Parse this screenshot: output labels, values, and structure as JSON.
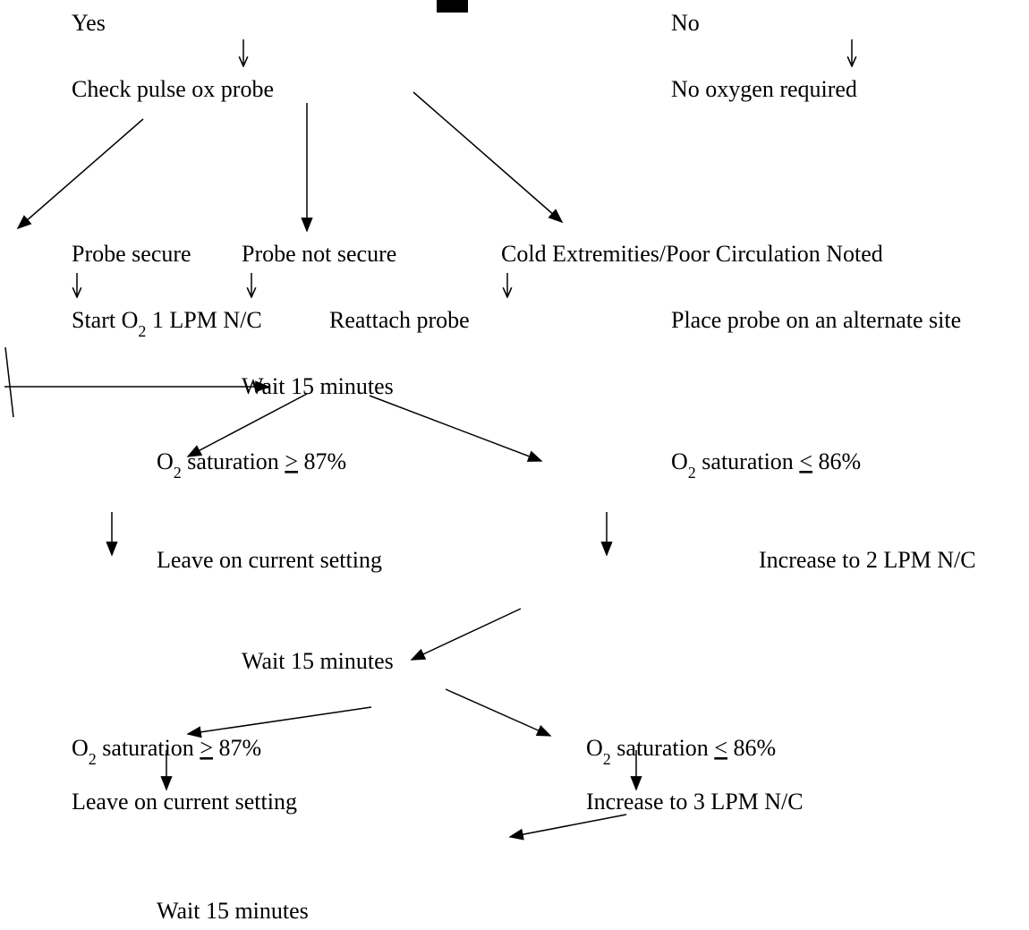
{
  "nodes": [
    {
      "parts": [
        {
          "text": "Yes"
        }
      ]
    },
    {
      "parts": [
        {
          "text": "No"
        }
      ]
    },
    {
      "parts": [
        {
          "text": "Check pulse ox probe"
        }
      ]
    },
    {
      "parts": [
        {
          "text": "No oxygen required"
        }
      ]
    },
    {
      "parts": [
        {
          "text": "Probe secure"
        }
      ]
    },
    {
      "parts": [
        {
          "text": "Probe not secure"
        }
      ]
    },
    {
      "parts": [
        {
          "text": "Cold Extremities/Poor Circulation Noted"
        }
      ]
    },
    {
      "parts": [
        {
          "text": "Start O"
        },
        {
          "text": "2",
          "sub": true
        },
        {
          "text": " 1 LPM N/C"
        }
      ]
    },
    {
      "parts": [
        {
          "text": "Reattach probe"
        }
      ]
    },
    {
      "parts": [
        {
          "text": "Place probe on an alternate site"
        }
      ]
    },
    {
      "parts": [
        {
          "text": "Wait 15 minutes"
        }
      ]
    },
    {
      "parts": [
        {
          "text": "O"
        },
        {
          "text": "2",
          "sub": true
        },
        {
          "text": " saturation "
        },
        {
          "text": ">",
          "underline": true
        },
        {
          "text": " 87%"
        }
      ]
    },
    {
      "parts": [
        {
          "text": "O"
        },
        {
          "text": "2",
          "sub": true
        },
        {
          "text": " saturation "
        },
        {
          "text": "<",
          "underline": true
        },
        {
          "text": " 86%"
        }
      ]
    },
    {
      "parts": [
        {
          "text": "Leave on current setting"
        }
      ]
    },
    {
      "parts": [
        {
          "text": "Increase to 2 LPM N/C"
        }
      ]
    },
    {
      "parts": [
        {
          "text": "Wait 15 minutes"
        }
      ]
    },
    {
      "parts": [
        {
          "text": "O"
        },
        {
          "text": "2",
          "sub": true
        },
        {
          "text": " saturation "
        },
        {
          "text": ">",
          "underline": true
        },
        {
          "text": " 87%"
        }
      ]
    },
    {
      "parts": [
        {
          "text": "O"
        },
        {
          "text": "2",
          "sub": true
        },
        {
          "text": " saturation "
        },
        {
          "text": "<",
          "underline": true
        },
        {
          "text": " 86%"
        }
      ]
    },
    {
      "parts": [
        {
          "text": "Leave on current setting"
        }
      ]
    },
    {
      "parts": [
        {
          "text": "Increase to 3 LPM N/C"
        }
      ]
    },
    {
      "parts": [
        {
          "text": "Wait 15 minutes"
        }
      ]
    }
  ]
}
